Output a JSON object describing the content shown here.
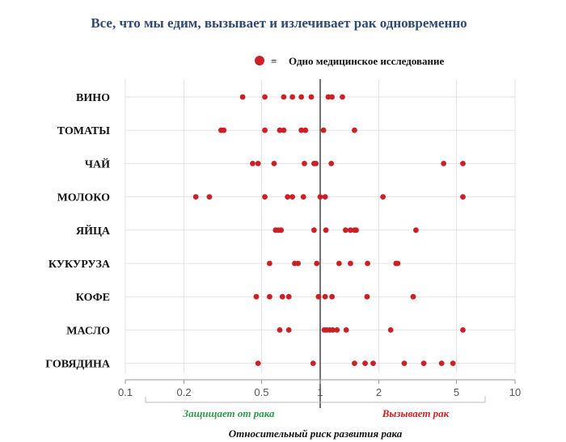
{
  "chart_data": {
    "type": "scatter",
    "title": "Все, что мы едим, вызывает и излечивает рак одновременно",
    "legend": {
      "symbol": "red-dot-icon",
      "equals": "=",
      "label": "Одно медицинское исследование",
      "placement": "top-right"
    },
    "xlabel": "Относительный риск развития рака",
    "xscale": "log",
    "xlim": [
      0.1,
      10
    ],
    "xticks": [
      {
        "value": 0.1,
        "label": "0.1"
      },
      {
        "value": 0.2,
        "label": "0.2"
      },
      {
        "value": 0.5,
        "label": "0.5"
      },
      {
        "value": 1,
        "label": "1"
      },
      {
        "value": 2,
        "label": "2"
      },
      {
        "value": 5,
        "label": "5"
      },
      {
        "value": 10,
        "label": "10"
      }
    ],
    "reference_line": 1,
    "annotations": {
      "protects": "Защищает от рака",
      "causes": "Вызывает рак"
    },
    "dot_color": "#cc2027",
    "series": [
      {
        "name": "ВИНО",
        "values": [
          0.4,
          0.52,
          0.65,
          0.72,
          0.8,
          0.9,
          1.1,
          1.15,
          1.3
        ]
      },
      {
        "name": "ТОМАТЫ",
        "values": [
          0.31,
          0.32,
          0.52,
          0.62,
          0.65,
          0.8,
          0.84,
          1.04,
          1.5
        ]
      },
      {
        "name": "ЧАЙ",
        "values": [
          0.45,
          0.48,
          0.58,
          0.83,
          0.93,
          0.95,
          1.14,
          4.3,
          5.4
        ]
      },
      {
        "name": "МОЛОКО",
        "values": [
          0.23,
          0.27,
          0.52,
          0.68,
          0.72,
          0.82,
          1.0,
          1.06,
          2.1,
          5.4
        ]
      },
      {
        "name": "ЯЙЦА",
        "values": [
          0.59,
          0.61,
          0.63,
          0.93,
          1.07,
          1.35,
          1.43,
          1.5,
          1.53,
          3.1
        ]
      },
      {
        "name": "КУКУРУЗА",
        "values": [
          0.55,
          0.74,
          0.77,
          0.96,
          1.25,
          1.43,
          1.75,
          2.45,
          2.5
        ]
      },
      {
        "name": "КОФЕ",
        "values": [
          0.47,
          0.55,
          0.64,
          0.69,
          0.98,
          1.06,
          1.15,
          1.74,
          3.0
        ]
      },
      {
        "name": "МАСЛО",
        "values": [
          0.62,
          0.69,
          1.05,
          1.08,
          1.12,
          1.16,
          1.22,
          1.36,
          2.3,
          5.4
        ]
      },
      {
        "name": "ГОВЯДИНА",
        "values": [
          0.48,
          0.92,
          1.5,
          1.7,
          1.87,
          2.7,
          3.4,
          4.2,
          4.8
        ]
      }
    ]
  }
}
